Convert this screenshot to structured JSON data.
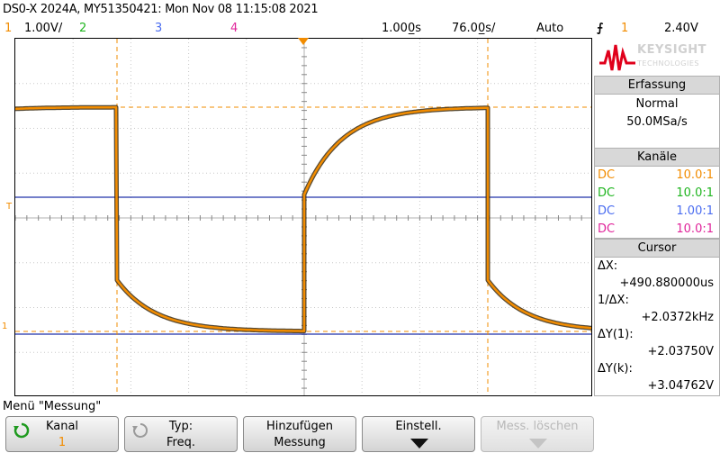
{
  "title": "DS0-X 2024A, MY51350421: Mon Nov 08 11:15:08 2021",
  "channels_bar": {
    "ch1_num": "1",
    "ch1_scale": "1.00V/",
    "ch2_num": "2",
    "ch3_num": "3",
    "ch4_num": "4",
    "timebase": "1.000̲s",
    "delay": "76.00̲s/",
    "mode": "Auto",
    "trigger_icon": "trigger-edge-icon",
    "trigger_src": "1",
    "trigger_level": "2.40V"
  },
  "markers": {
    "trigger_level": "T",
    "ground": "1"
  },
  "logo": {
    "brand": "KEYSIGHT",
    "sub": "TECHNOLOGIES"
  },
  "acquisition": {
    "header": "Erfassung",
    "mode": "Normal",
    "rate": "50.0MSa/s"
  },
  "channels": {
    "header": "Kanäle",
    "items": [
      {
        "coupling": "DC",
        "ratio": "10.0:1",
        "color": "#f28c00"
      },
      {
        "coupling": "DC",
        "ratio": "10.0:1",
        "color": "#1fb51f"
      },
      {
        "coupling": "DC",
        "ratio": "1.00:1",
        "color": "#4a6cf0"
      },
      {
        "coupling": "DC",
        "ratio": "10.0:1",
        "color": "#e0249a"
      }
    ]
  },
  "cursor": {
    "header": "Cursor",
    "dx_label": "ΔX:",
    "dx_value": "+490.880000us",
    "inv_label": "1/ΔX:",
    "inv_value": "+2.0372kHz",
    "dy1_label": "ΔY(1):",
    "dy1_value": "+2.03750V",
    "dyk_label": "ΔY(k):",
    "dyk_value": "+3.04762V"
  },
  "menu": {
    "title": "Menü \"Messung\"",
    "buttons": [
      {
        "line1": "Kanal",
        "line2": "1"
      },
      {
        "line1": "Typ:",
        "line2": "Freq."
      },
      {
        "line1": "Hinzufügen",
        "line2": "Messung"
      },
      {
        "line1": "Einstell.",
        "line2": ""
      },
      {
        "line1": "Mess. löschen",
        "line2": ""
      }
    ]
  },
  "colors": {
    "ch1": "#f28c00",
    "ch2": "#1fb51f",
    "ch3": "#4a6cf0",
    "ch4": "#e0249a",
    "cursor_line": "#2233aa"
  }
}
